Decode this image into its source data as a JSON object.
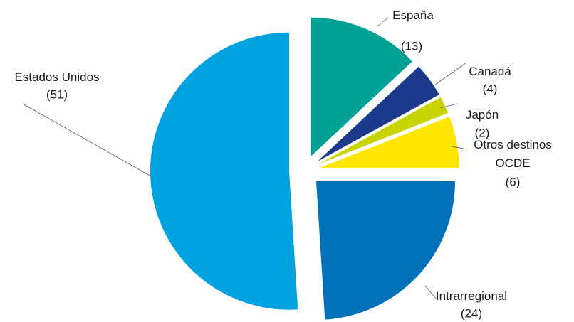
{
  "chart_data": {
    "type": "pie",
    "categories": [
      "España",
      "Canadá",
      "Japón",
      "Otros destinos OCDE",
      "Intrarregional",
      "Estados Unidos"
    ],
    "values": [
      13,
      4,
      2,
      6,
      24,
      51
    ],
    "value_labels": [
      "(13)",
      "(4)",
      "(2)",
      "(6)",
      "(24)",
      "(51)"
    ],
    "colors": [
      "#00a295",
      "#1b3a8c",
      "#c8d400",
      "#ffe600",
      "#0070b8",
      "#00a3e0"
    ],
    "exploded": true
  }
}
